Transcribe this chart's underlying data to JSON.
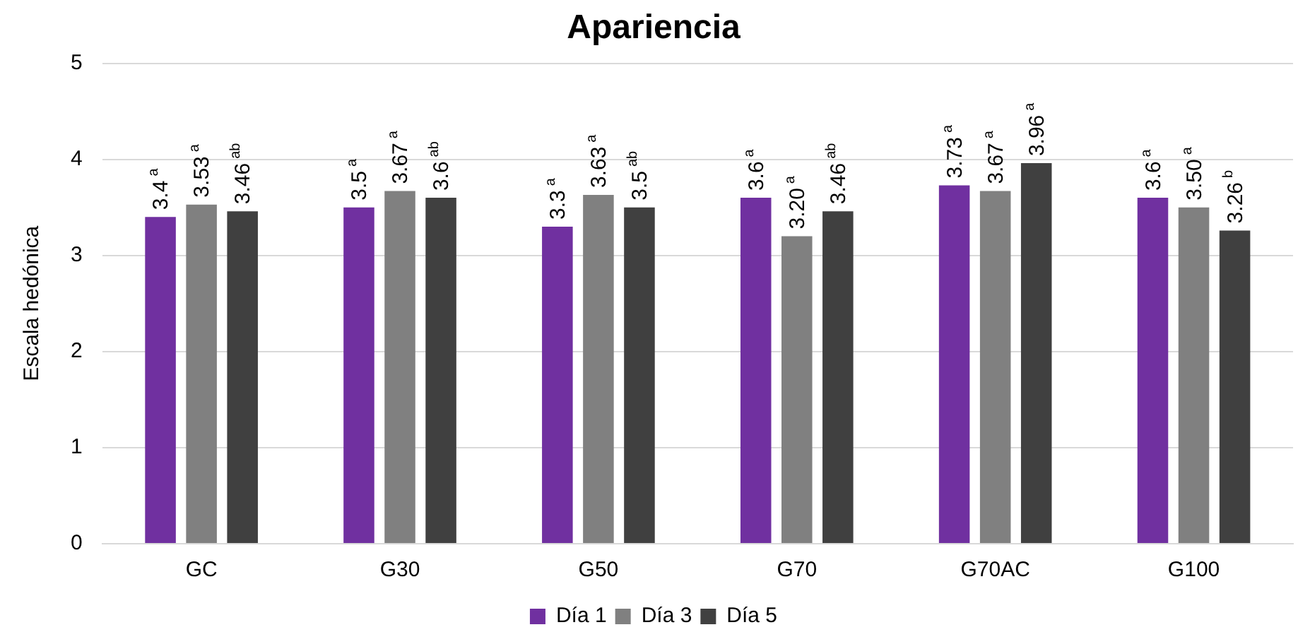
{
  "chart_data": {
    "type": "bar",
    "title": "Apariencia",
    "ylabel": "Escala hedónica",
    "categories": [
      "GC",
      "G30",
      "G50",
      "G70",
      "G70AC",
      "G100"
    ],
    "series": [
      {
        "name": "Día 1",
        "color": "#7030a0",
        "values": [
          3.4,
          3.5,
          3.3,
          3.6,
          3.73,
          3.6
        ],
        "value_labels": [
          "3.4$^{a}$",
          "3.5$^{a}$",
          "3.3$^{a}$",
          "3.6$^{a}$",
          "3.73$^{a}$",
          "3.6$^{a}$"
        ]
      },
      {
        "name": "Día 3",
        "color": "#808080",
        "values": [
          3.53,
          3.67,
          3.63,
          3.2,
          3.67,
          3.5
        ],
        "value_labels": [
          "3.53$^{a}$",
          "3.67$^{a}$",
          "3.63$^{a}$",
          "3.20$^{a}$",
          "3.67$^{a}$",
          "3.50$^{a}$"
        ]
      },
      {
        "name": "Día 5",
        "color": "#404040",
        "values": [
          3.46,
          3.6,
          3.5,
          3.46,
          3.96,
          3.26
        ],
        "value_labels": [
          "3.46$^{ab}$",
          "3.6$^{ab}$",
          "3.5$^{ab}$",
          "3.46$^{ab}$",
          "3.96$^{a}$",
          "3.26$^{b}$"
        ]
      }
    ],
    "ylim": [
      0,
      5
    ],
    "yticks": [
      0,
      1,
      2,
      3,
      4,
      5
    ],
    "grid": "y",
    "legend": "bottom"
  }
}
